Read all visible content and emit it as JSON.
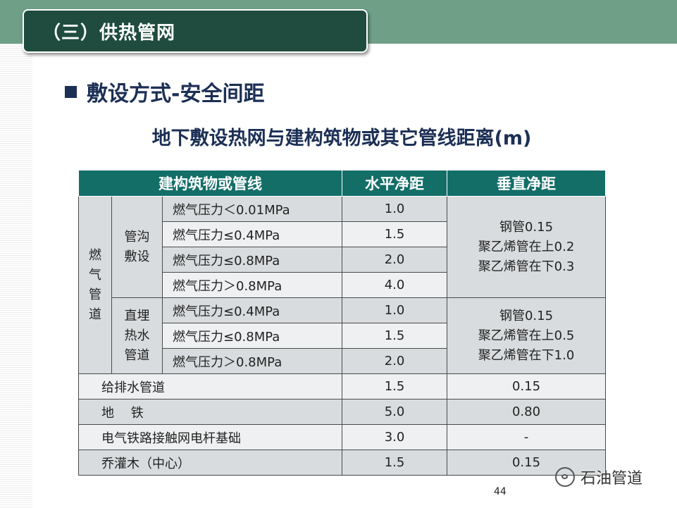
{
  "slide": {
    "title": "（三）供热管网",
    "heading": "敷设方式-安全间距",
    "table_caption": "地下敷设热网与建构筑物或其它管线距离(m)",
    "page_number": "44",
    "watermark": "石油管道"
  },
  "table": {
    "headers": [
      "建构筑物或管线",
      "水平净距",
      "垂直净距"
    ],
    "gas_group_label": "燃气管道",
    "gas_group_chars": [
      "燃",
      "气",
      "管",
      "道"
    ],
    "trench": {
      "label_lines": [
        "管沟",
        "敷设"
      ],
      "rows": [
        {
          "item": "燃气压力＜0.01MPa",
          "horizontal": "1.0"
        },
        {
          "item": "燃气压力≤0.4MPa",
          "horizontal": "1.5"
        },
        {
          "item": "燃气压力≤0.8MPa",
          "horizontal": "2.0"
        },
        {
          "item": "燃气压力＞0.8MPa",
          "horizontal": "4.0"
        }
      ],
      "vertical_lines": [
        "钢管0.15",
        "聚乙烯管在上0.2",
        "聚乙烯管在下0.3"
      ]
    },
    "direct": {
      "label_lines": [
        "直埋",
        "热水",
        "管道"
      ],
      "rows": [
        {
          "item": "燃气压力≤0.4MPa",
          "horizontal": "1.0"
        },
        {
          "item": "燃气压力≤0.8MPa",
          "horizontal": "1.5"
        },
        {
          "item": "燃气压力＞0.8MPa",
          "horizontal": "2.0"
        }
      ],
      "vertical_lines": [
        "钢管0.15",
        "聚乙烯管在上0.5",
        "聚乙烯管在下1.0"
      ]
    },
    "other_rows": [
      {
        "item": "给排水管道",
        "horizontal": "1.5",
        "vertical": "0.15"
      },
      {
        "item": "地　 铁",
        "horizontal": "5.0",
        "vertical": "0.80"
      },
      {
        "item": "电气铁路接触网电杆基础",
        "horizontal": "3.0",
        "vertical": "-"
      },
      {
        "item": "乔灌木（中心）",
        "horizontal": "1.5",
        "vertical": "0.15"
      }
    ]
  }
}
